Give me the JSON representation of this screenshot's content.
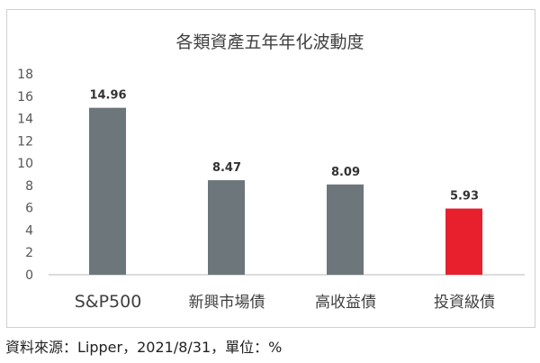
{
  "chart_data": {
    "type": "bar",
    "title": "各類資產五年年化波動度",
    "categories": [
      "S&P500",
      "新興市場債",
      "高收益債",
      "投資級債"
    ],
    "values": [
      14.96,
      8.47,
      8.09,
      5.93
    ],
    "value_labels": [
      "14.96",
      "8.47",
      "8.09",
      "5.93"
    ],
    "colors": [
      "#6d767b",
      "#6d767b",
      "#6d767b",
      "#e8202e"
    ],
    "ylim": [
      0,
      18
    ],
    "yticks": [
      0,
      2,
      4,
      6,
      8,
      10,
      12,
      14,
      16,
      18
    ],
    "xlabel": "",
    "ylabel": "",
    "grid": false
  },
  "footer": "資料來源：Lipper，2021/8/31，單位：%"
}
